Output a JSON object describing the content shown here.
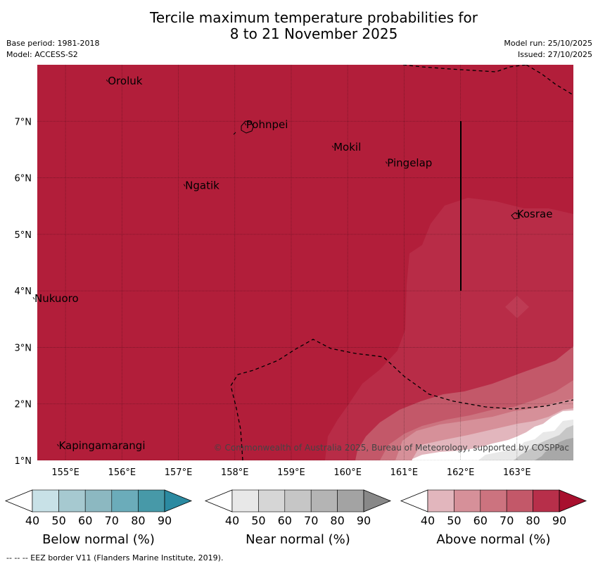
{
  "title": {
    "line1": "Tercile maximum temperature probabilities for",
    "line2": "8 to 21 November 2025"
  },
  "meta": {
    "base_period": "Base period: 1981-2018",
    "model": "Model: ACCESS-S2",
    "model_run": "Model run: 25/10/2025",
    "issued": "Issued: 27/10/2025"
  },
  "map": {
    "lon_range": [
      154.5,
      164.0
    ],
    "lat_range": [
      1.0,
      8.0
    ],
    "lon_ticks": [
      {
        "value": 155,
        "label": "155°E"
      },
      {
        "value": 156,
        "label": "156°E"
      },
      {
        "value": 157,
        "label": "157°E"
      },
      {
        "value": 158,
        "label": "158°E"
      },
      {
        "value": 159,
        "label": "159°E"
      },
      {
        "value": 160,
        "label": "160°E"
      },
      {
        "value": 161,
        "label": "161°E"
      },
      {
        "value": 162,
        "label": "162°E"
      },
      {
        "value": 163,
        "label": "163°E"
      }
    ],
    "lat_ticks": [
      {
        "value": 1,
        "label": "1°N"
      },
      {
        "value": 2,
        "label": "2°N"
      },
      {
        "value": 3,
        "label": "3°N"
      },
      {
        "value": 4,
        "label": "4°N"
      },
      {
        "value": 5,
        "label": "5°N"
      },
      {
        "value": 6,
        "label": "6°N"
      },
      {
        "value": 7,
        "label": "7°N"
      }
    ],
    "places": [
      {
        "name": "Oroluk",
        "lon": 155.75,
        "lat": 7.65
      },
      {
        "name": "Pohnpei",
        "lon": 158.2,
        "lat": 6.88
      },
      {
        "name": "Mokil",
        "lon": 159.75,
        "lat": 6.48
      },
      {
        "name": "Pingelap",
        "lon": 160.7,
        "lat": 6.2
      },
      {
        "name": "Ngatik",
        "lon": 157.12,
        "lat": 5.8
      },
      {
        "name": "Kosrae",
        "lon": 163.0,
        "lat": 5.3
      },
      {
        "name": "Nukuoro",
        "lon": 154.45,
        "lat": 3.8
      },
      {
        "name": "Kapingamarangi",
        "lon": 154.88,
        "lat": 1.2
      }
    ],
    "copyright": "© Commonwealth of Australia 2025, Bureau of Meteorology, supported by COSPPac",
    "dominant_category": "Above normal",
    "dominant_probability_percent": 90,
    "background_color": "#b21e3a"
  },
  "colorbars": [
    {
      "id": "below",
      "title": "Below normal (%)",
      "ticks": [
        "40",
        "50",
        "60",
        "70",
        "80",
        "90"
      ],
      "colors": [
        "#ffffff",
        "#c8e1e7",
        "#a6c9d0",
        "#8cb8c1",
        "#6bacba",
        "#4799a8",
        "#2b8aa1"
      ]
    },
    {
      "id": "near",
      "title": "Near normal (%)",
      "ticks": [
        "40",
        "50",
        "60",
        "70",
        "80",
        "90"
      ],
      "colors": [
        "#ffffff",
        "#e8e8e8",
        "#d6d6d6",
        "#c6c6c6",
        "#b4b4b4",
        "#a3a3a3",
        "#888888"
      ]
    },
    {
      "id": "above",
      "title": "Above normal (%)",
      "ticks": [
        "40",
        "50",
        "60",
        "70",
        "80",
        "90"
      ],
      "colors": [
        "#ffffff",
        "#e2b6bd",
        "#d69099",
        "#cc737f",
        "#c35869",
        "#b72f4a",
        "#a8102e"
      ]
    }
  ],
  "footer": "--  --  -- EEZ border V11 (Flanders Marine Institute, 2019)."
}
